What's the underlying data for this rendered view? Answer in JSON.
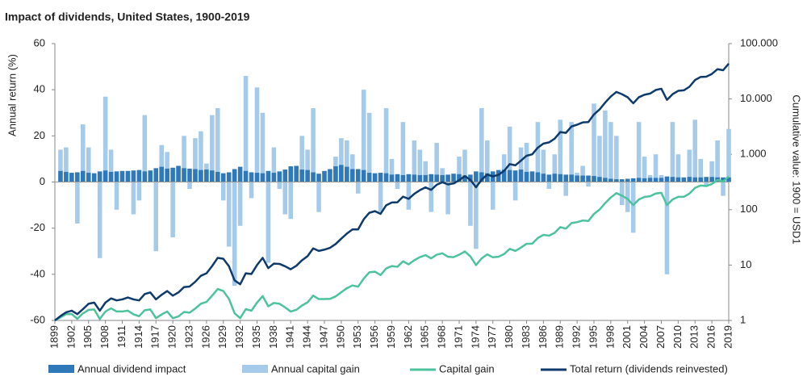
{
  "chart_data": {
    "type": "bar",
    "title": "Impact of dividends, United States, 1900-2019",
    "y_label": "Annual return (%)",
    "y2_label": "Cumulative value: 1900 = USD1",
    "categories": [
      "1899",
      null,
      null,
      "1902",
      null,
      null,
      "1905",
      null,
      null,
      "1908",
      null,
      null,
      "1911",
      null,
      null,
      "1914",
      null,
      null,
      "1917",
      null,
      null,
      "1920",
      null,
      null,
      "1923",
      null,
      null,
      "1926",
      null,
      null,
      "1929",
      null,
      null,
      "1932",
      null,
      null,
      "1935",
      null,
      null,
      "1938",
      null,
      null,
      "1941",
      null,
      null,
      "1944",
      null,
      null,
      "1947",
      null,
      null,
      "1950",
      null,
      null,
      "1953",
      null,
      null,
      "1956",
      null,
      null,
      "1959",
      null,
      null,
      "1962",
      null,
      null,
      "1965",
      null,
      null,
      "1968",
      null,
      null,
      "1971",
      null,
      null,
      "1974",
      null,
      null,
      "1977",
      null,
      null,
      "1980",
      null,
      null,
      "1983",
      null,
      null,
      "1986",
      null,
      null,
      "1989",
      null,
      null,
      "1992",
      null,
      null,
      "1995",
      null,
      null,
      "1998",
      null,
      null,
      "2001",
      null,
      null,
      "2004",
      null,
      null,
      "2007",
      null,
      null,
      "2010",
      null,
      null,
      "2013",
      null,
      null,
      "2016",
      null,
      null,
      "2019"
    ],
    "ylim": [
      -60,
      60
    ],
    "yticks": [
      -60,
      -40,
      -20,
      0,
      20,
      40,
      60
    ],
    "y2lim": [
      1,
      100000
    ],
    "y2ticks": [
      1,
      10,
      100,
      {
        "value": 1000,
        "label": "1.000"
      },
      {
        "value": 10000,
        "label": "10.000"
      },
      {
        "value": 100000,
        "label": "100.000"
      }
    ],
    "y2_log": true,
    "legend": "bottom",
    "series": [
      {
        "name": "Annual capital gain",
        "type": "bar",
        "color": "#a6cbea",
        "values": [
          null,
          14,
          15,
          1,
          -18,
          25,
          15,
          2,
          -33,
          37,
          14,
          -12,
          0,
          3,
          -14,
          -8,
          29,
          3,
          -30,
          16,
          13,
          -24,
          7,
          20,
          -3,
          19,
          22,
          8,
          29,
          32,
          -8,
          -28,
          -45,
          -19,
          46,
          -7,
          41,
          30,
          -35,
          15,
          -3,
          -14,
          -16,
          7,
          20,
          14,
          32,
          -13,
          0,
          1,
          11,
          19,
          18,
          12,
          -5,
          40,
          30,
          3,
          -13,
          32,
          10,
          -3,
          26,
          -12,
          18,
          14,
          9,
          -13,
          17,
          6,
          -14,
          -1,
          11,
          14,
          -19,
          -29,
          32,
          18,
          -12,
          2,
          12,
          24,
          -8,
          15,
          17,
          1,
          26,
          14,
          -3,
          12,
          27,
          -6,
          26,
          4,
          7,
          -2,
          34,
          20,
          31,
          26,
          20,
          -10,
          -13,
          -22,
          26,
          11,
          3,
          12,
          3,
          -40,
          26,
          12,
          0,
          14,
          27,
          10,
          -2,
          9,
          18,
          -6,
          23
        ]
      },
      {
        "name": "Annual dividend impact",
        "type": "bar",
        "color": "#2f78ba",
        "values": [
          null,
          4.8,
          4.4,
          4.0,
          4.2,
          4.8,
          4.0,
          3.8,
          4.6,
          5.0,
          4.4,
          4.6,
          4.8,
          4.8,
          5.0,
          5.2,
          4.6,
          5.0,
          6.0,
          6.6,
          5.8,
          6.2,
          7.0,
          6.0,
          5.8,
          5.6,
          5.2,
          5.4,
          5.0,
          4.4,
          3.8,
          4.2,
          5.6,
          6.6,
          4.8,
          4.2,
          4.0,
          3.8,
          4.8,
          4.0,
          4.6,
          5.4,
          6.8,
          7.0,
          5.4,
          5.2,
          4.2,
          3.6,
          4.8,
          5.6,
          6.8,
          7.4,
          6.6,
          5.6,
          5.6,
          5.2,
          4.0,
          3.8,
          4.0,
          3.8,
          3.2,
          3.4,
          3.0,
          3.4,
          3.2,
          3.0,
          3.0,
          3.4,
          3.2,
          3.0,
          3.2,
          3.6,
          3.4,
          2.8,
          3.2,
          4.6,
          4.2,
          3.8,
          4.6,
          5.2,
          5.4,
          5.2,
          5.0,
          5.4,
          4.4,
          4.6,
          4.2,
          3.6,
          3.2,
          3.6,
          3.4,
          3.2,
          3.2,
          2.8,
          2.8,
          2.8,
          2.6,
          2.2,
          1.8,
          1.4,
          1.2,
          1.2,
          1.4,
          1.6,
          1.8,
          1.6,
          1.8,
          1.8,
          1.8,
          2.4,
          2.2,
          2.0,
          2.0,
          2.2,
          2.0,
          2.0,
          2.2,
          2.2,
          2.0,
          2.0,
          2.0
        ]
      },
      {
        "name": "Capital gain",
        "type": "line",
        "axis": "y2",
        "color": "#4cc39c",
        "values": [
          1,
          1.14,
          1.3,
          1.3,
          1.07,
          1.34,
          1.55,
          1.58,
          1.06,
          1.45,
          1.65,
          1.45,
          1.45,
          1.5,
          1.29,
          1.19,
          1.53,
          1.58,
          1.1,
          1.28,
          1.45,
          1.1,
          1.18,
          1.42,
          1.38,
          1.64,
          2.0,
          2.16,
          2.8,
          3.7,
          3.4,
          2.45,
          1.35,
          1.1,
          1.6,
          1.5,
          2.1,
          2.75,
          1.8,
          2.07,
          2.0,
          1.72,
          1.45,
          1.55,
          1.86,
          2.12,
          2.8,
          2.43,
          2.43,
          2.45,
          2.72,
          3.24,
          3.82,
          4.28,
          4.07,
          5.7,
          7.4,
          7.6,
          6.6,
          8.7,
          9.6,
          9.3,
          11.7,
          10.3,
          12.2,
          13.9,
          15.1,
          13.2,
          15.4,
          16.3,
          14.1,
          13.9,
          15.4,
          17.6,
          14.3,
          10,
          13.2,
          15.6,
          13.8,
          14.1,
          15.8,
          19.6,
          18,
          20.7,
          24.2,
          24.4,
          30.8,
          35.1,
          34,
          38.1,
          48.4,
          45.5,
          57.3,
          59.6,
          63.8,
          62.5,
          83.8,
          100.5,
          131.7,
          166,
          199,
          179,
          156,
          121,
          153,
          170,
          175,
          196,
          202,
          121,
          153,
          171,
          171,
          195,
          248,
          273,
          267,
          291,
          344,
          323,
          397
        ]
      },
      {
        "name": "Total return (dividends reinvested)",
        "type": "line",
        "axis": "y2",
        "color": "#0e3a6c",
        "values": [
          1,
          1.2,
          1.4,
          1.5,
          1.3,
          1.6,
          2.0,
          2.1,
          1.5,
          2.1,
          2.5,
          2.3,
          2.4,
          2.6,
          2.4,
          2.3,
          3.0,
          3.2,
          2.4,
          2.9,
          3.4,
          2.8,
          3.2,
          4.0,
          4.1,
          5.0,
          6.4,
          7.1,
          9.6,
          13.5,
          13,
          9.5,
          5.3,
          4.5,
          7.1,
          6.9,
          10,
          13.5,
          8.8,
          10.6,
          10.5,
          9.5,
          8.4,
          9.7,
          12.2,
          14.5,
          20,
          18,
          19,
          20.5,
          24,
          30,
          37,
          44,
          44,
          67,
          88,
          94,
          84,
          120,
          135,
          136,
          172,
          157,
          193,
          225,
          253,
          228,
          282,
          313,
          286,
          298,
          340,
          405,
          345,
          254,
          348,
          431,
          400,
          425,
          503,
          666,
          633,
          769,
          942,
          1000,
          1318,
          1564,
          1643,
          1915,
          2520,
          2440,
          3185,
          3428,
          3770,
          3820,
          5250,
          6460,
          8610,
          11070,
          13400,
          12180,
          10730,
          8360,
          10760,
          11930,
          12520,
          14500,
          15290,
          9630,
          12180,
          14020,
          14310,
          16600,
          21980,
          24970,
          25300,
          28330,
          34500,
          33000,
          43400
        ]
      }
    ]
  }
}
